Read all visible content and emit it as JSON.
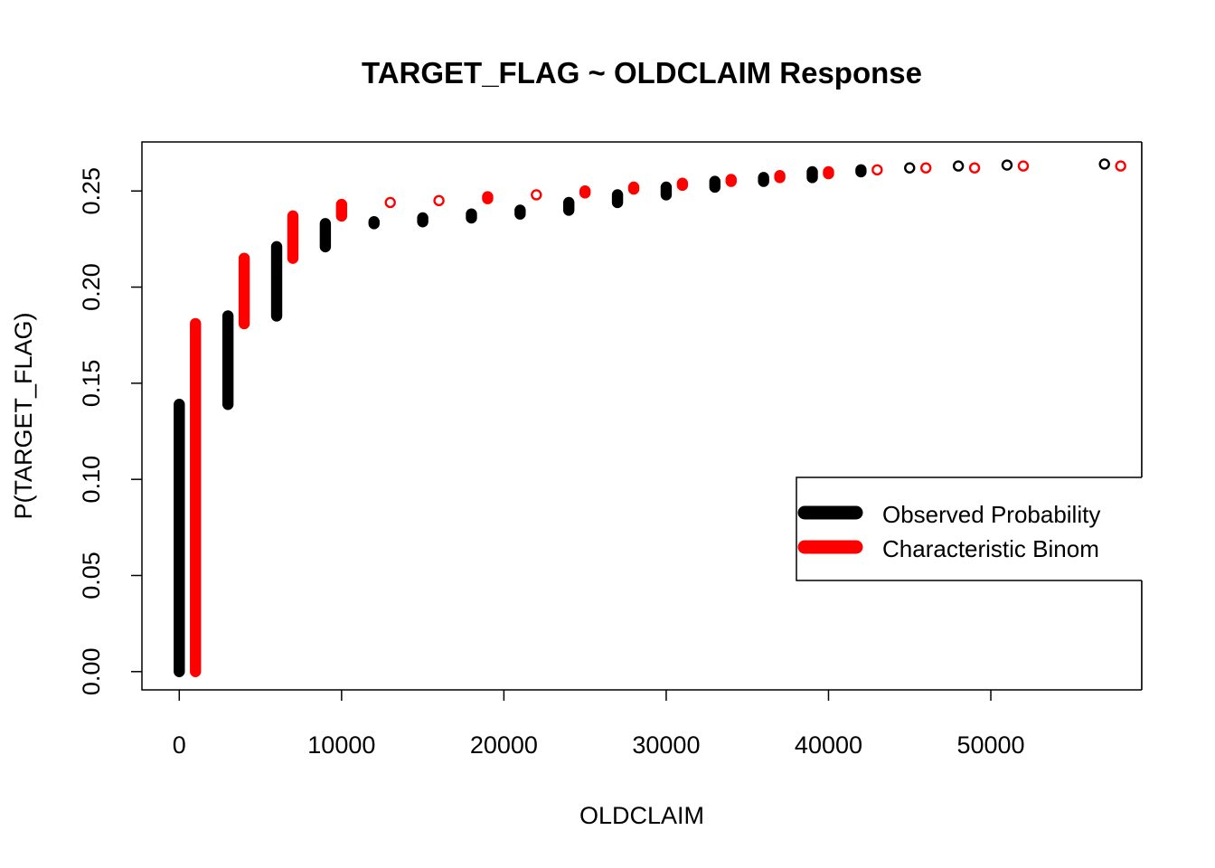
{
  "chart_data": {
    "type": "scatter",
    "title": "TARGET_FLAG ~ OLDCLAIM Response",
    "xlabel": "OLDCLAIM",
    "ylabel": "P(TARGET_FLAG)",
    "xlim": [
      -2300,
      59300
    ],
    "ylim": [
      -0.0095,
      0.2755
    ],
    "x_ticks": [
      0,
      10000,
      20000,
      30000,
      40000,
      50000
    ],
    "x_tick_labels": [
      "0",
      "10000",
      "20000",
      "30000",
      "40000",
      "50000"
    ],
    "y_ticks": [
      0.0,
      0.05,
      0.1,
      0.15,
      0.2,
      0.25
    ],
    "y_tick_labels": [
      "0.00",
      "0.05",
      "0.10",
      "0.15",
      "0.20",
      "0.25"
    ],
    "grid": false,
    "legend": {
      "position": "right",
      "entries": [
        {
          "label": "Observed Probability",
          "color": "#000000"
        },
        {
          "label": "Characteristic Binom",
          "color": "#ff0000"
        }
      ]
    },
    "series": [
      {
        "name": "Observed Probability",
        "color": "#000000",
        "x": [
          0,
          3000,
          6000,
          9000,
          12000,
          15000,
          18000,
          21000,
          24000,
          27000,
          30000,
          33000,
          36000,
          39000,
          42000,
          45000,
          48000,
          51000,
          57000
        ],
        "y_min": [
          0.0,
          0.139,
          0.185,
          0.221,
          0.233,
          0.234,
          0.236,
          0.238,
          0.24,
          0.244,
          0.248,
          0.252,
          0.255,
          0.257,
          0.26,
          0.262,
          0.263,
          0.2635,
          0.264
        ],
        "y_max": [
          0.139,
          0.185,
          0.221,
          0.233,
          0.234,
          0.236,
          0.238,
          0.24,
          0.244,
          0.248,
          0.252,
          0.255,
          0.257,
          0.26,
          0.261,
          0.262,
          0.263,
          0.2635,
          0.264
        ]
      },
      {
        "name": "Characteristic Binom",
        "color": "#ff0000",
        "x": [
          1000,
          4000,
          7000,
          10000,
          13000,
          16000,
          19000,
          22000,
          25000,
          28000,
          31000,
          34000,
          37000,
          40000,
          43000,
          46000,
          49000,
          52000,
          58000
        ],
        "y_min": [
          0.0,
          0.181,
          0.215,
          0.237,
          0.244,
          0.245,
          0.246,
          0.248,
          0.249,
          0.251,
          0.253,
          0.255,
          0.257,
          0.259,
          0.261,
          0.262,
          0.262,
          0.263,
          0.263
        ],
        "y_max": [
          0.181,
          0.215,
          0.237,
          0.243,
          0.244,
          0.245,
          0.247,
          0.248,
          0.25,
          0.252,
          0.254,
          0.256,
          0.258,
          0.26,
          0.261,
          0.262,
          0.262,
          0.263,
          0.263
        ]
      }
    ]
  }
}
